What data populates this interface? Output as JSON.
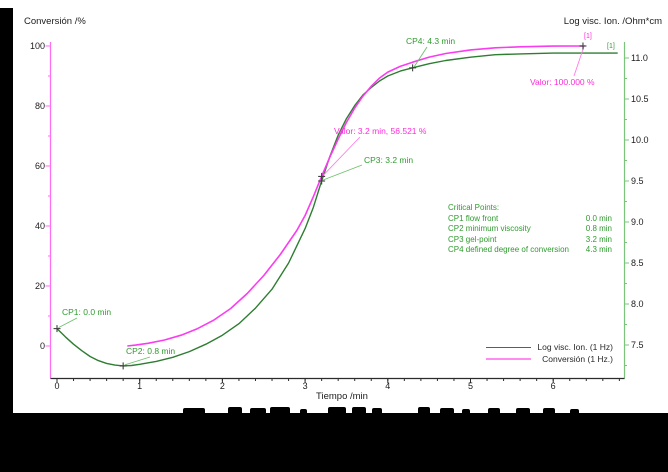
{
  "colors": {
    "green_curve": "#2e7d32",
    "green_text": "#2e9b2e",
    "green_axis": "#7cc47c",
    "magenta_curve": "#fa3cf0",
    "magenta_text": "#ff2bd9",
    "magenta_axis": "#ff6cf6",
    "axis_black": "#2b2b2b"
  },
  "chart_data": {
    "type": "line",
    "x_axis": {
      "title": "Tiempo /min",
      "range": [
        0,
        6.93
      ],
      "major_ticks": [
        "0",
        "1",
        "2",
        "3",
        "4",
        "5",
        "6"
      ],
      "minor_step": 0.2
    },
    "y_left_axis": {
      "title": "Conversión /%",
      "range": [
        -10.8,
        101.3
      ],
      "major_ticks": [
        "0",
        "20",
        "40",
        "60",
        "80",
        "100"
      ],
      "minor_step": 10
    },
    "y_right_axis": {
      "title": "Log visc. Ion. /Ohm*cm",
      "range": [
        7.09,
        11.2
      ],
      "major_ticks": [
        "7.5",
        "8.0",
        "8.5",
        "9.0",
        "9.5",
        "10.0",
        "10.5",
        "11.0"
      ],
      "minor_step": 0.25
    },
    "grid": false,
    "legend_position": "inside-bottom-right",
    "series": [
      {
        "name": "Log visc. Ion. (1 Hz)",
        "axis": "right",
        "end_label": "[1]",
        "points": [
          [
            0,
            7.7
          ],
          [
            0.1,
            7.6
          ],
          [
            0.2,
            7.51
          ],
          [
            0.3,
            7.43
          ],
          [
            0.4,
            7.36
          ],
          [
            0.5,
            7.31
          ],
          [
            0.6,
            7.275
          ],
          [
            0.7,
            7.255
          ],
          [
            0.8,
            7.245
          ],
          [
            0.9,
            7.25
          ],
          [
            1.0,
            7.265
          ],
          [
            1.2,
            7.3
          ],
          [
            1.4,
            7.35
          ],
          [
            1.6,
            7.42
          ],
          [
            1.8,
            7.51
          ],
          [
            2.0,
            7.62
          ],
          [
            2.2,
            7.76
          ],
          [
            2.4,
            7.95
          ],
          [
            2.6,
            8.18
          ],
          [
            2.8,
            8.5
          ],
          [
            3.0,
            8.92
          ],
          [
            3.1,
            9.18
          ],
          [
            3.2,
            9.5
          ],
          [
            3.3,
            9.8
          ],
          [
            3.4,
            10.06
          ],
          [
            3.5,
            10.26
          ],
          [
            3.6,
            10.42
          ],
          [
            3.7,
            10.55
          ],
          [
            3.8,
            10.64
          ],
          [
            3.9,
            10.72
          ],
          [
            4.0,
            10.78
          ],
          [
            4.15,
            10.84
          ],
          [
            4.3,
            10.88
          ],
          [
            4.5,
            10.93
          ],
          [
            4.7,
            10.97
          ],
          [
            5.0,
            11.01
          ],
          [
            5.3,
            11.04
          ],
          [
            5.6,
            11.05
          ],
          [
            6.0,
            11.06
          ],
          [
            6.4,
            11.06
          ],
          [
            6.78,
            11.06
          ]
        ]
      },
      {
        "name": "Conversión (1 Hz.)",
        "axis": "left",
        "end_label": "[1]",
        "points": [
          [
            0.85,
            0
          ],
          [
            0.95,
            0.3
          ],
          [
            1.1,
            0.9
          ],
          [
            1.3,
            2.0
          ],
          [
            1.5,
            3.6
          ],
          [
            1.7,
            5.8
          ],
          [
            1.9,
            8.7
          ],
          [
            2.1,
            12.5
          ],
          [
            2.3,
            17.5
          ],
          [
            2.5,
            23.5
          ],
          [
            2.7,
            30.5
          ],
          [
            2.9,
            38.5
          ],
          [
            3.0,
            43.5
          ],
          [
            3.1,
            49.8
          ],
          [
            3.2,
            56.521
          ],
          [
            3.3,
            63
          ],
          [
            3.4,
            69
          ],
          [
            3.5,
            74.5
          ],
          [
            3.6,
            79.3
          ],
          [
            3.7,
            83.3
          ],
          [
            3.8,
            86.6
          ],
          [
            3.9,
            89.3
          ],
          [
            4.0,
            91.3
          ],
          [
            4.15,
            93.2
          ],
          [
            4.3,
            94.6
          ],
          [
            4.5,
            96.3
          ],
          [
            4.7,
            97.5
          ],
          [
            5.0,
            98.7
          ],
          [
            5.3,
            99.4
          ],
          [
            5.6,
            99.75
          ],
          [
            6.0,
            99.95
          ],
          [
            6.36,
            100
          ]
        ]
      }
    ],
    "annotations": [
      {
        "id": "cp1",
        "text": "CP1: 0.0 min",
        "series": "visc",
        "t": 0.0,
        "v": 7.7,
        "color": "green"
      },
      {
        "id": "cp2",
        "text": "CP2: 0.8 min",
        "series": "visc",
        "t": 0.8,
        "v": 7.245,
        "color": "green"
      },
      {
        "id": "cp3",
        "text": "CP3: 3.2 min",
        "series": "visc",
        "t": 3.2,
        "v": 9.5,
        "color": "green"
      },
      {
        "id": "cp4",
        "text": "CP4: 4.3 min",
        "series": "visc",
        "t": 4.3,
        "v": 10.88,
        "color": "green"
      },
      {
        "id": "valor1",
        "text": "Valor: 3.2 min, 56.521 %",
        "series": "conv",
        "t": 3.2,
        "v": 56.521,
        "color": "magenta"
      },
      {
        "id": "valor2",
        "text": "Valor: 100.000 %",
        "series": "conv",
        "t": 6.36,
        "v": 100,
        "color": "magenta"
      }
    ],
    "critical_points_box": {
      "title": "Critical Points:",
      "rows": [
        {
          "cp": "CP1",
          "desc": "flow front",
          "value": "0.0 min"
        },
        {
          "cp": "CP2",
          "desc": "minimum viscosity",
          "value": "0.8 min"
        },
        {
          "cp": "CP3",
          "desc": "gel-point",
          "value": "3.2 min"
        },
        {
          "cp": "CP4",
          "desc": "defined degree of conversion",
          "value": "4.3 min"
        }
      ]
    },
    "legend": [
      {
        "name": "Log visc. Ion. (1 Hz)"
      },
      {
        "name": "Conversión (1 Hz.)"
      }
    ]
  }
}
